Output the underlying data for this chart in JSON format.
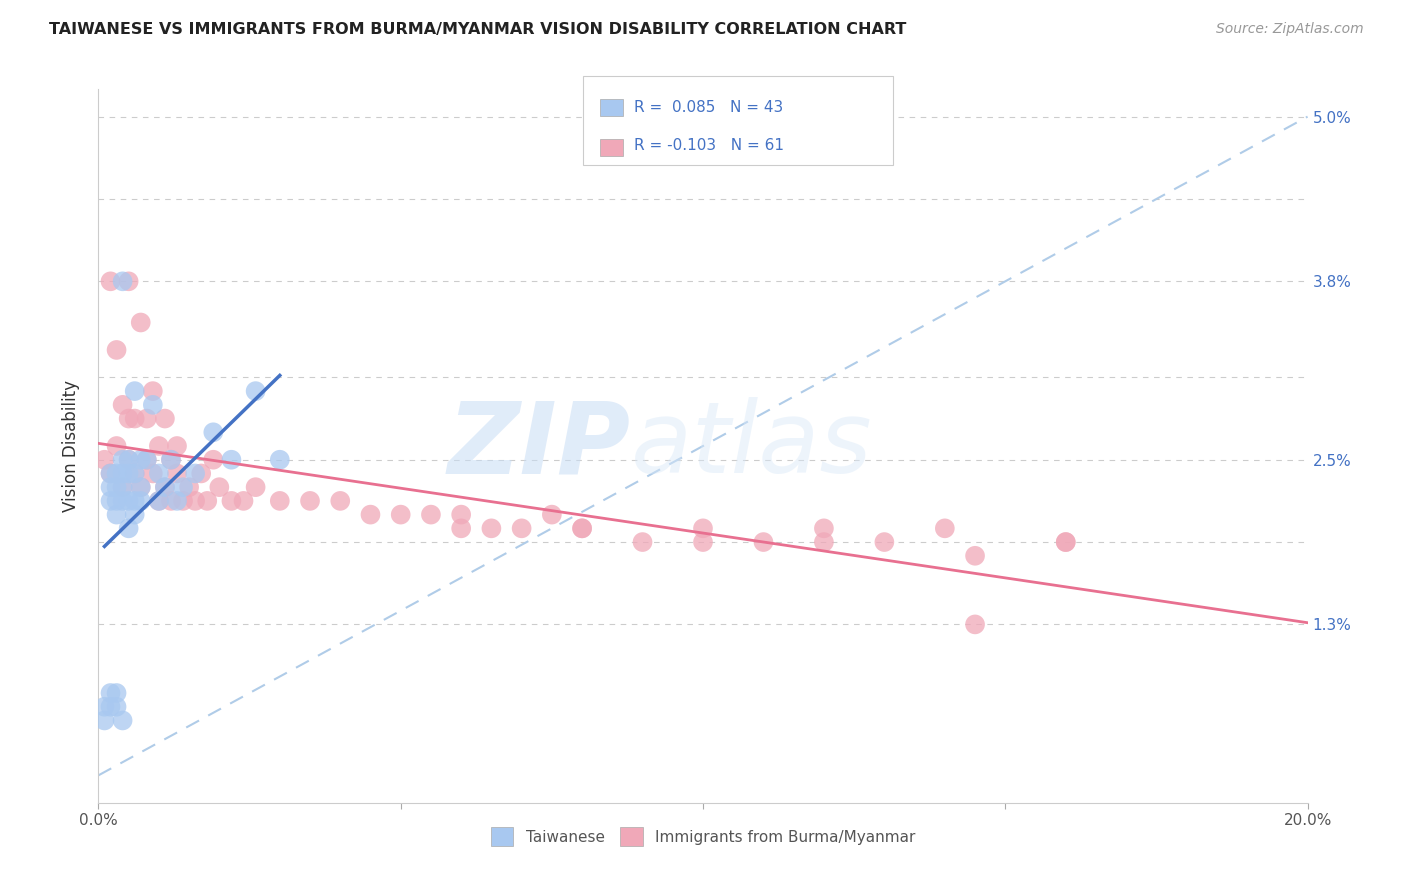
{
  "title": "TAIWANESE VS IMMIGRANTS FROM BURMA/MYANMAR VISION DISABILITY CORRELATION CHART",
  "source": "Source: ZipAtlas.com",
  "ylabel": "Vision Disability",
  "watermark_zip": "ZIP",
  "watermark_atlas": "atlas",
  "xlim": [
    0.0,
    0.2
  ],
  "ylim": [
    0.0,
    0.052
  ],
  "xticks": [
    0.0,
    0.05,
    0.1,
    0.15,
    0.2
  ],
  "xtick_labels": [
    "0.0%",
    "",
    "",
    "",
    "20.0%"
  ],
  "yticks": [
    0.0,
    0.013,
    0.019,
    0.025,
    0.031,
    0.038,
    0.044,
    0.05
  ],
  "ytick_labels_right": [
    "",
    "1.3%",
    "",
    "2.5%",
    "",
    "3.8%",
    "",
    "5.0%"
  ],
  "color_taiwanese": "#a8c8f0",
  "color_myanmar": "#f0a8b8",
  "color_line_taiwanese": "#4472c4",
  "color_line_myanmar": "#e87090",
  "color_dashed": "#b0cce8",
  "color_grid": "#cccccc",
  "legend_color": "#4472c4",
  "taiwanese_x": [
    0.001,
    0.001,
    0.002,
    0.002,
    0.002,
    0.002,
    0.002,
    0.003,
    0.003,
    0.003,
    0.003,
    0.003,
    0.003,
    0.004,
    0.004,
    0.004,
    0.004,
    0.004,
    0.004,
    0.005,
    0.005,
    0.005,
    0.005,
    0.006,
    0.006,
    0.006,
    0.006,
    0.007,
    0.007,
    0.007,
    0.008,
    0.009,
    0.01,
    0.01,
    0.011,
    0.012,
    0.013,
    0.014,
    0.016,
    0.019,
    0.022,
    0.026,
    0.03
  ],
  "taiwanese_y": [
    0.007,
    0.006,
    0.007,
    0.008,
    0.022,
    0.023,
    0.024,
    0.007,
    0.008,
    0.021,
    0.022,
    0.023,
    0.024,
    0.006,
    0.022,
    0.023,
    0.024,
    0.025,
    0.038,
    0.02,
    0.022,
    0.024,
    0.025,
    0.021,
    0.022,
    0.024,
    0.03,
    0.022,
    0.023,
    0.025,
    0.025,
    0.029,
    0.022,
    0.024,
    0.023,
    0.025,
    0.022,
    0.023,
    0.024,
    0.027,
    0.025,
    0.03,
    0.025
  ],
  "myanmar_x": [
    0.001,
    0.002,
    0.002,
    0.003,
    0.003,
    0.004,
    0.004,
    0.005,
    0.005,
    0.005,
    0.006,
    0.006,
    0.007,
    0.007,
    0.008,
    0.008,
    0.009,
    0.009,
    0.01,
    0.01,
    0.011,
    0.011,
    0.012,
    0.012,
    0.013,
    0.013,
    0.014,
    0.015,
    0.016,
    0.017,
    0.018,
    0.019,
    0.02,
    0.022,
    0.024,
    0.026,
    0.03,
    0.035,
    0.04,
    0.045,
    0.05,
    0.055,
    0.06,
    0.065,
    0.07,
    0.075,
    0.08,
    0.09,
    0.1,
    0.11,
    0.12,
    0.13,
    0.14,
    0.145,
    0.16,
    0.06,
    0.08,
    0.1,
    0.12,
    0.145,
    0.16
  ],
  "myanmar_y": [
    0.025,
    0.024,
    0.038,
    0.026,
    0.033,
    0.023,
    0.029,
    0.025,
    0.028,
    0.038,
    0.024,
    0.028,
    0.023,
    0.035,
    0.025,
    0.028,
    0.024,
    0.03,
    0.022,
    0.026,
    0.023,
    0.028,
    0.022,
    0.025,
    0.024,
    0.026,
    0.022,
    0.023,
    0.022,
    0.024,
    0.022,
    0.025,
    0.023,
    0.022,
    0.022,
    0.023,
    0.022,
    0.022,
    0.022,
    0.021,
    0.021,
    0.021,
    0.02,
    0.02,
    0.02,
    0.021,
    0.02,
    0.019,
    0.02,
    0.019,
    0.02,
    0.019,
    0.02,
    0.013,
    0.019,
    0.021,
    0.02,
    0.019,
    0.019,
    0.018,
    0.019
  ]
}
